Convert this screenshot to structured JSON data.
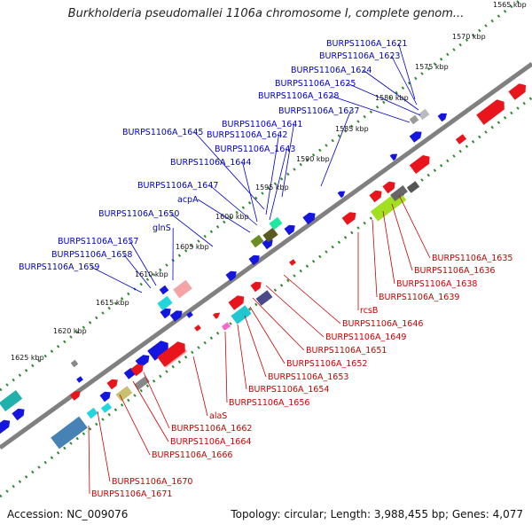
{
  "title": "Burkholderia pseudomallei 1106a chromosome I, complete genom...",
  "footer": {
    "accession": "Accession: NC_009076",
    "stats": "Topology: circular; Length: 3,988,455 bp; Genes: 4,077"
  },
  "colors": {
    "backbone": "#808080",
    "scale_dots": "#2e8b2e",
    "forward_gene": "#e8161c",
    "reverse_gene": "#1515e0",
    "forward_label": "#cc0000",
    "reverse_label": "#0000cc"
  },
  "ticks": [
    "1565 kbp",
    "1570 kbp",
    "1575 kbp",
    "1580 kbp",
    "1585 kbp",
    "1590 kbp",
    "1595 kbp",
    "1600 kbp",
    "1605 kbp",
    "1610 kbp",
    "1615 kbp",
    "1620 kbp",
    "1625 kbp"
  ],
  "reverse_labels": [
    "BURPS1106A_1621",
    "BURPS1106A_1623",
    "BURPS1106A_1624",
    "BURPS1106A_1625",
    "BURPS1106A_1628",
    "BURPS1106A_1637",
    "BURPS1106A_1641",
    "BURPS1106A_1645",
    "BURPS1106A_1642",
    "BURPS1106A_1643",
    "BURPS1106A_1644",
    "BURPS1106A_1647",
    "acpA",
    "BURPS1106A_1650",
    "glnS",
    "BURPS1106A_1657",
    "BURPS1106A_1658",
    "BURPS1106A_1659"
  ],
  "forward_labels": [
    "BURPS1106A_1635",
    "BURPS1106A_1636",
    "BURPS1106A_1638",
    "BURPS1106A_1639",
    "rcsB",
    "BURPS1106A_1646",
    "BURPS1106A_1649",
    "BURPS1106A_1651",
    "BURPS1106A_1652",
    "BURPS1106A_1653",
    "BURPS1106A_1654",
    "BURPS1106A_1656",
    "alaS",
    "BURPS1106A_1662",
    "BURPS1106A_1664",
    "BURPS1106A_1666",
    "BURPS1106A_1670",
    "BURPS1106A_1671"
  ]
}
